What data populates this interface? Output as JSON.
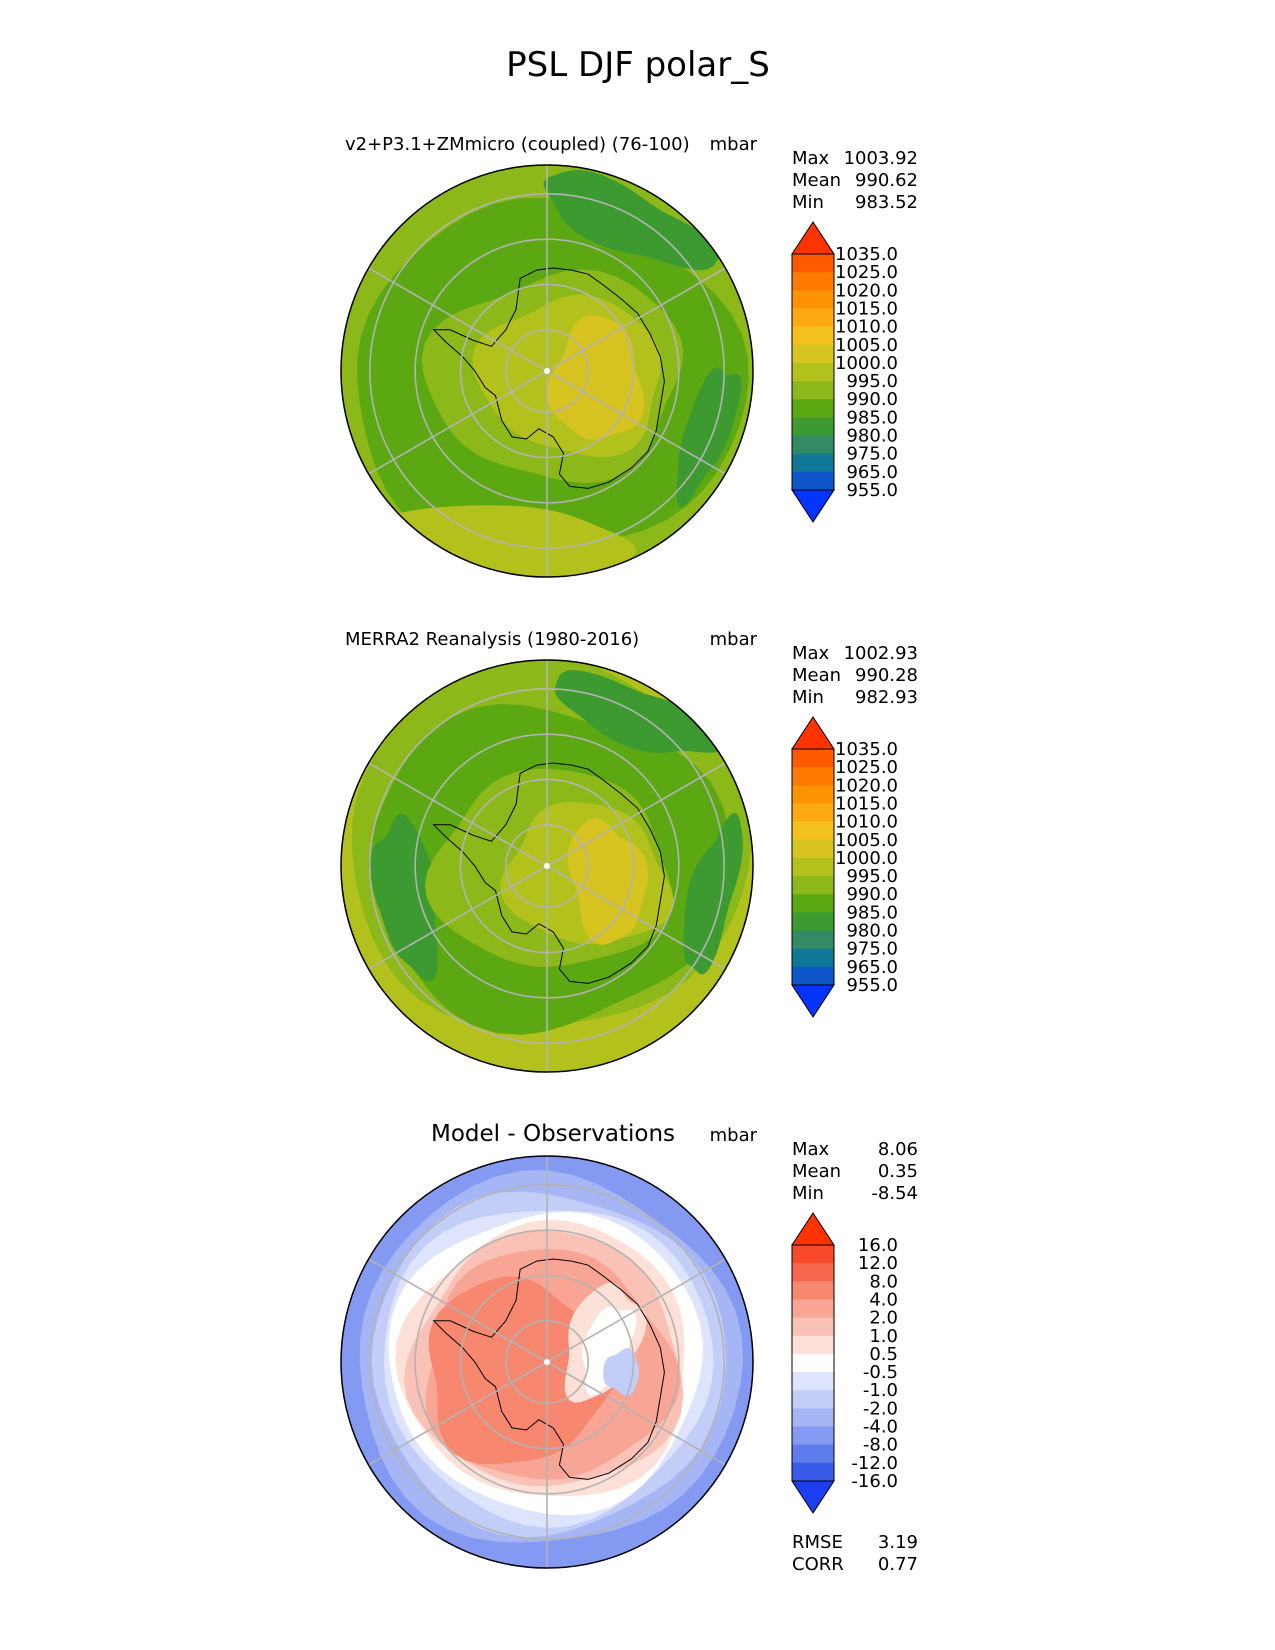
{
  "title": "PSL DJF polar_S",
  "chart_data": [
    {
      "type": "heatmap",
      "projection": "south-polar-stereographic",
      "title_left": "v2+P3.1+ZMmicro (coupled) (76-100)",
      "title_center": "",
      "units": "mbar",
      "stats": [
        {
          "label": "Max",
          "value": "1003.92"
        },
        {
          "label": "Mean",
          "value": "990.62"
        },
        {
          "label": "Min",
          "value": "983.52"
        }
      ],
      "colorbar": {
        "levels": [
          "1035.0",
          "1025.0",
          "1020.0",
          "1015.0",
          "1010.0",
          "1005.0",
          "1000.0",
          "995.0",
          "990.0",
          "985.0",
          "980.0",
          "975.0",
          "965.0",
          "955.0"
        ],
        "colors": [
          "#ff3300",
          "#ff5a00",
          "#ff7800",
          "#ff9200",
          "#fdaa12",
          "#f5c11d",
          "#d8c420",
          "#b3c11c",
          "#8db81a",
          "#5ca812",
          "#3c9a30",
          "#338a64",
          "#0f7896",
          "#0d55c8",
          "#0533ff"
        ]
      },
      "field_summary": {
        "max": 1003.92,
        "mean": 990.62,
        "min": 983.52
      },
      "grid_on": true
    },
    {
      "type": "heatmap",
      "projection": "south-polar-stereographic",
      "title_left": "MERRA2 Reanalysis (1980-2016)",
      "title_center": "",
      "units": "mbar",
      "stats": [
        {
          "label": "Max",
          "value": "1002.93"
        },
        {
          "label": "Mean",
          "value": "990.28"
        },
        {
          "label": "Min",
          "value": "982.93"
        }
      ],
      "colorbar": {
        "levels": [
          "1035.0",
          "1025.0",
          "1020.0",
          "1015.0",
          "1010.0",
          "1005.0",
          "1000.0",
          "995.0",
          "990.0",
          "985.0",
          "980.0",
          "975.0",
          "965.0",
          "955.0"
        ],
        "colors": [
          "#ff3300",
          "#ff5a00",
          "#ff7800",
          "#ff9200",
          "#fdaa12",
          "#f5c11d",
          "#d8c420",
          "#b3c11c",
          "#8db81a",
          "#5ca812",
          "#3c9a30",
          "#338a64",
          "#0f7896",
          "#0d55c8",
          "#0533ff"
        ]
      },
      "field_summary": {
        "max": 1002.93,
        "mean": 990.28,
        "min": 982.93
      },
      "grid_on": true
    },
    {
      "type": "heatmap",
      "projection": "south-polar-stereographic",
      "title_left": "",
      "title_center": "Model - Observations",
      "units": "mbar",
      "stats": [
        {
          "label": "Max",
          "value": "8.06"
        },
        {
          "label": "Mean",
          "value": "0.35"
        },
        {
          "label": "Min",
          "value": "-8.54"
        }
      ],
      "colorbar": {
        "levels": [
          "16.0",
          "12.0",
          "8.0",
          "4.0",
          "2.0",
          "1.0",
          "0.5",
          "-0.5",
          "-1.0",
          "-2.0",
          "-4.0",
          "-8.0",
          "-12.0",
          "-16.0"
        ],
        "colors": [
          "#ff3300",
          "#f74a2b",
          "#f7674e",
          "#f7876f",
          "#f8a596",
          "#fac2b6",
          "#fde0d8",
          "#ffffff",
          "#dde4fb",
          "#c2cdf8",
          "#a6b6f5",
          "#8499f2",
          "#5f7ced",
          "#385be9",
          "#1c3df2"
        ]
      },
      "field_summary": {
        "max": 8.06,
        "mean": 0.35,
        "min": -8.54
      },
      "error_stats": [
        {
          "label": "RMSE",
          "value": "3.19"
        },
        {
          "label": "CORR",
          "value": "0.77"
        }
      ],
      "grid_on": true
    }
  ]
}
